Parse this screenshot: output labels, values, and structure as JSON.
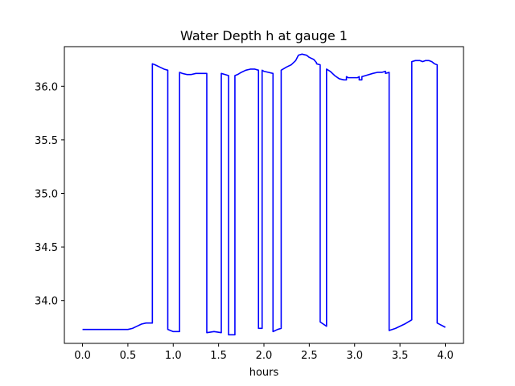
{
  "chart_data": {
    "type": "line",
    "title": "Water Depth h at gauge 1",
    "xlabel": "hours",
    "ylabel": "",
    "xlim": [
      -0.2,
      4.2
    ],
    "ylim": [
      33.6,
      36.37
    ],
    "xticks": [
      0.0,
      0.5,
      1.0,
      1.5,
      2.0,
      2.5,
      3.0,
      3.5,
      4.0
    ],
    "xtick_labels": [
      "0.0",
      "0.5",
      "1.0",
      "1.5",
      "2.0",
      "2.5",
      "3.0",
      "3.5",
      "4.0"
    ],
    "yticks": [
      34.0,
      34.5,
      35.0,
      35.5,
      36.0
    ],
    "ytick_labels": [
      "34.0",
      "34.5",
      "35.0",
      "35.5",
      "36.0"
    ],
    "grid": false,
    "legend": "none",
    "line_color": "#0000ff",
    "series": [
      {
        "x": [
          0.0,
          0.5,
          0.55,
          0.6,
          0.65,
          0.7,
          0.77,
          0.77,
          0.8,
          0.85,
          0.9,
          0.94,
          0.94,
          0.97,
          1.0,
          1.07,
          1.07,
          1.1,
          1.15,
          1.2,
          1.25,
          1.3,
          1.37,
          1.37,
          1.45,
          1.53,
          1.53,
          1.57,
          1.61,
          1.61,
          1.68,
          1.68,
          1.71,
          1.75,
          1.8,
          1.85,
          1.9,
          1.94,
          1.94,
          1.98,
          1.98,
          2.0,
          2.05,
          2.1,
          2.1,
          2.15,
          2.19,
          2.19,
          2.25,
          2.3,
          2.35,
          2.38,
          2.42,
          2.47,
          2.5,
          2.55,
          2.58,
          2.58,
          2.62,
          2.62,
          2.69,
          2.69,
          2.73,
          2.78,
          2.83,
          2.88,
          2.91,
          2.91,
          2.93,
          2.98,
          3.03,
          3.05,
          3.05,
          3.08,
          3.08,
          3.12,
          3.2,
          3.25,
          3.3,
          3.34,
          3.34,
          3.38,
          3.38,
          3.45,
          3.55,
          3.63,
          3.63,
          3.67,
          3.72,
          3.75,
          3.78,
          3.82,
          3.85,
          3.88,
          3.91,
          3.91,
          4.0
        ],
        "y": [
          33.73,
          33.73,
          33.74,
          33.76,
          33.78,
          33.79,
          33.79,
          36.21,
          36.2,
          36.18,
          36.16,
          36.15,
          33.73,
          33.72,
          33.71,
          33.71,
          36.13,
          36.12,
          36.11,
          36.11,
          36.12,
          36.12,
          36.12,
          33.7,
          33.71,
          33.7,
          36.12,
          36.11,
          36.1,
          33.68,
          33.68,
          36.1,
          36.11,
          36.13,
          36.15,
          36.16,
          36.16,
          36.15,
          33.74,
          33.74,
          36.15,
          36.14,
          36.13,
          36.12,
          33.71,
          33.73,
          33.74,
          36.15,
          36.18,
          36.2,
          36.24,
          36.29,
          36.3,
          36.29,
          36.27,
          36.25,
          36.22,
          36.21,
          36.2,
          33.8,
          33.76,
          36.16,
          36.14,
          36.1,
          36.07,
          36.06,
          36.06,
          36.09,
          36.08,
          36.08,
          36.08,
          36.09,
          36.06,
          36.06,
          36.09,
          36.1,
          36.12,
          36.13,
          36.13,
          36.14,
          36.12,
          36.13,
          33.72,
          33.74,
          33.78,
          33.82,
          36.23,
          36.24,
          36.24,
          36.23,
          36.24,
          36.24,
          36.23,
          36.21,
          36.2,
          33.79,
          33.75
        ]
      }
    ]
  }
}
